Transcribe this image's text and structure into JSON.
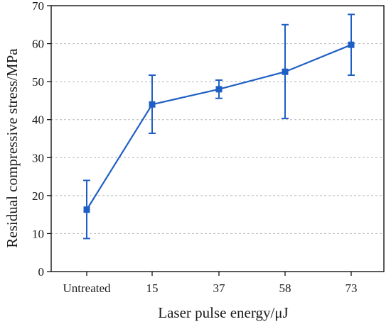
{
  "chart_data": {
    "type": "line",
    "title": "",
    "xlabel": "Laser pulse energy/μJ",
    "ylabel": "Residual compressive stress/MPa",
    "categories": [
      "Untreated",
      "15",
      "37",
      "58",
      "73"
    ],
    "series": [
      {
        "values": [
          16.3,
          44.0,
          48.0,
          52.6,
          59.7
        ],
        "error_low": [
          8.7,
          36.4,
          45.6,
          40.3,
          51.7
        ],
        "error_high": [
          24.0,
          51.7,
          50.4,
          65.0,
          67.7
        ],
        "color": "#1f5fc4",
        "marker": "square"
      }
    ],
    "ylim": [
      0,
      70
    ],
    "yticks": [
      0,
      10,
      20,
      30,
      40,
      50,
      60,
      70
    ],
    "grid": "horizontal-dashed",
    "legend": "none"
  }
}
